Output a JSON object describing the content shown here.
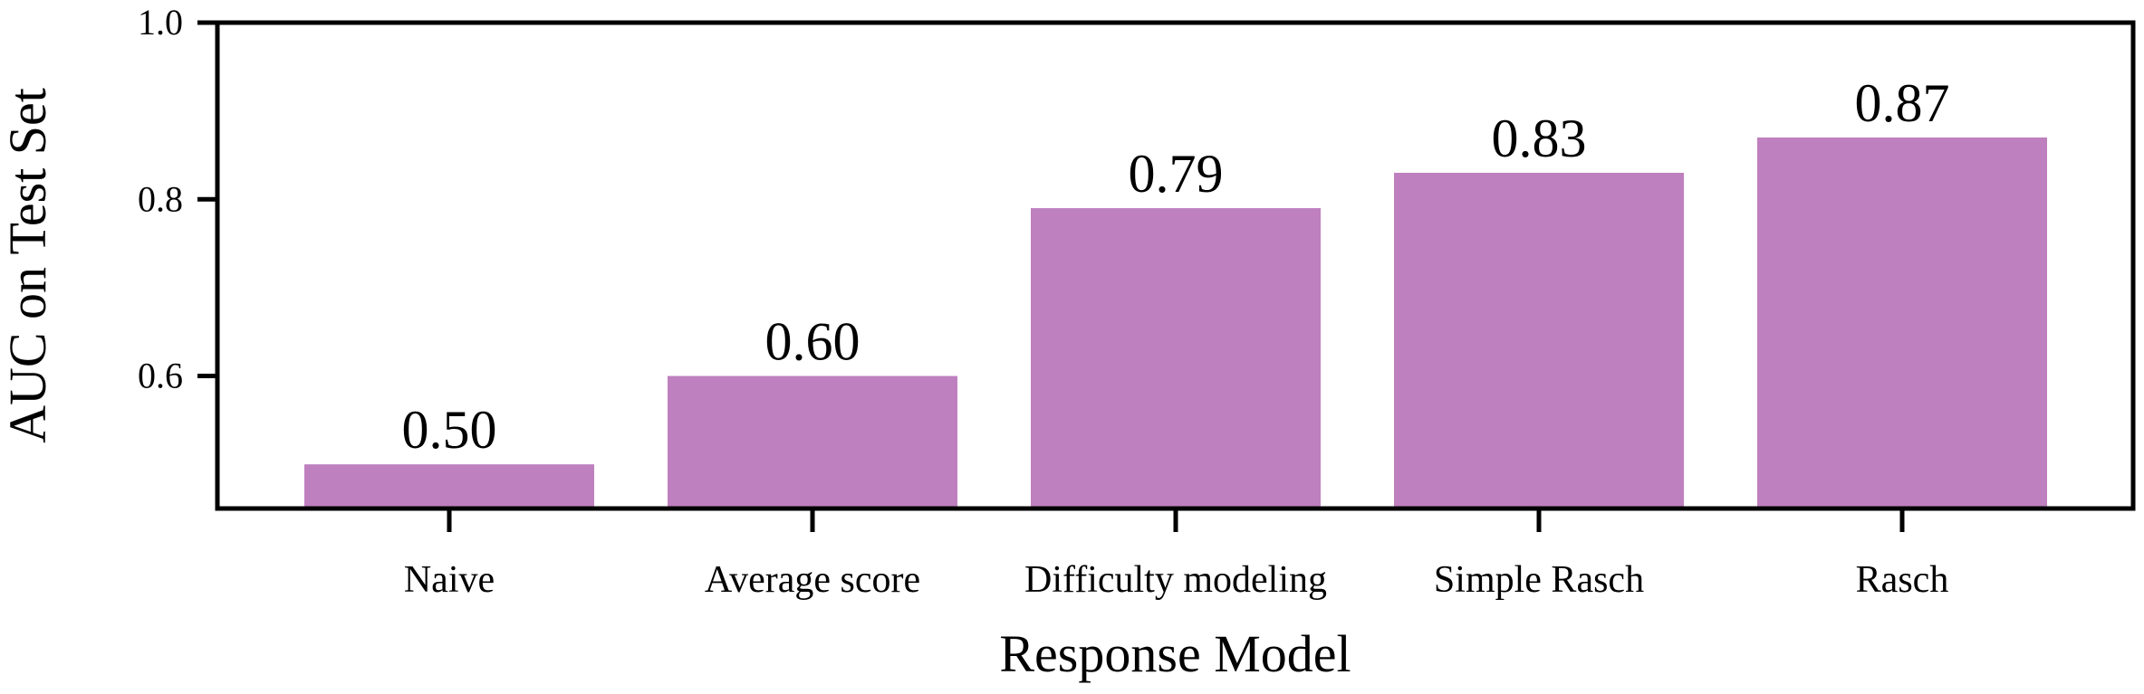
{
  "chart_data": {
    "type": "bar",
    "categories": [
      "Naive",
      "Average score",
      "Difficulty modeling",
      "Simple Rasch",
      "Rasch"
    ],
    "values": [
      0.5,
      0.6,
      0.79,
      0.83,
      0.87
    ],
    "data_labels": [
      "0.50",
      "0.60",
      "0.79",
      "0.83",
      "0.87"
    ],
    "title": "",
    "xlabel": "Response Model",
    "ylabel": "AUC on Test Set",
    "ylim": [
      0.45,
      1.0
    ],
    "yticks": [
      0.6,
      0.8,
      1.0
    ],
    "ytick_labels": [
      "0.6",
      "0.8",
      "1.0"
    ],
    "bar_color": "#bf80bf",
    "grid": false,
    "legend": "none"
  }
}
